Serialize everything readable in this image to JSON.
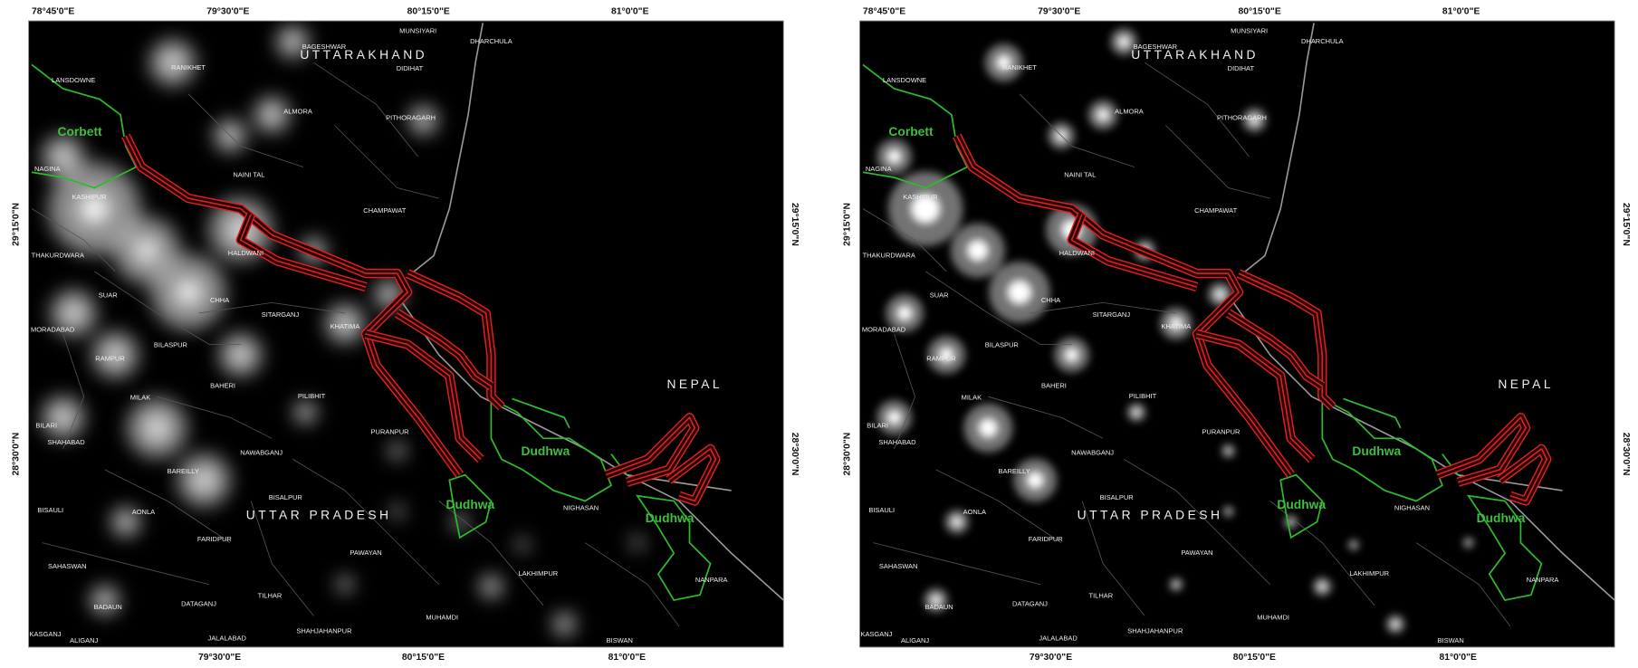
{
  "panels": [
    {
      "coordinates": {
        "top": [
          "78°45'0\"E",
          "79°30'0\"E",
          "80°15'0\"E",
          "81°0'0\"E"
        ],
        "bottom": [
          "79°30'0\"E",
          "80°15'0\"E",
          "81°0'0\"E"
        ],
        "left": [
          "29°15'0\"N",
          "28°30'0\"N"
        ],
        "right": [
          "29°15'0\"N",
          "28°30'0\"N"
        ]
      },
      "regions": [
        "UTTARAKHAND",
        "UTTAR PRADESH",
        "NEPAL"
      ],
      "reserves": [
        "Corbett",
        "Dudhwa",
        "Dudhwa",
        "Dudhwa"
      ],
      "places": [
        "MUNSIYARI",
        "BAGESHWAR",
        "DHARCHULA",
        "RANIKHET",
        "DIDIHAT",
        "LANSDOWNE",
        "ALMORA",
        "PITHORAGARH",
        "NAGINA",
        "NAINI TAL",
        "KASHIPUR",
        "CHAMPAWAT",
        "THAKURDWARA",
        "HALDWANI",
        "SUAR",
        "CHHA",
        "SITARGANJ",
        "KHATIMA",
        "MORADABAD",
        "BILASPUR",
        "RAMPUR",
        "BAHERI",
        "MILAK",
        "PILIBHIT",
        "BILARI",
        "PURANPUR",
        "SHAHABAD",
        "NAWABGANJ",
        "BAREILLY",
        "BISALPUR",
        "NIGHASAN",
        "BISAULI",
        "AONLA",
        "FARIDPUR",
        "PAWAYAN",
        "SAHASWAN",
        "LAKHIMPUR",
        "NANPARA",
        "BADAUN",
        "DATAGANJ",
        "TILHAR",
        "MUHAMDI",
        "SHAHJAHANPUR",
        "KASGANJ",
        "ALIGANJ",
        "JALALABAD",
        "BISWAN"
      ]
    },
    {
      "coordinates": {
        "top": [
          "78°45'0\"E",
          "79°30'0\"E",
          "80°15'0\"E",
          "81°0'0\"E"
        ],
        "bottom": [
          "79°30'0\"E",
          "80°15'0\"E",
          "81°0'0\"E"
        ],
        "left": [
          "29°15'0\"N",
          "28°30'0\"N"
        ],
        "right": [
          "29°15'0\"N",
          "28°30'0\"N"
        ]
      },
      "regions": [
        "UTTARAKHAND",
        "UTTAR PRADESH",
        "NEPAL"
      ],
      "reserves": [
        "Corbett",
        "Dudhwa",
        "Dudhwa",
        "Dudhwa"
      ],
      "places": [
        "MUNSIYARI",
        "BAGESHWAR",
        "DHARCHULA",
        "RANIKHET",
        "DIDIHAT",
        "LANSDOWNE",
        "ALMORA",
        "PITHORAGARH",
        "NAGINA",
        "NAINI TAL",
        "KASHIPUR",
        "CHAMPAWAT",
        "THAKURDWARA",
        "HALDWANI",
        "SUAR",
        "CHHA",
        "SITARGANJ",
        "KHATIMA",
        "MORADABAD",
        "BILASPUR",
        "RAMPUR",
        "BAHERI",
        "MILAK",
        "PILIBHIT",
        "BILARI",
        "PURANPUR",
        "SHAHABAD",
        "NAWABGANJ",
        "BAREILLY",
        "BISALPUR",
        "NIGHASAN",
        "BISAULI",
        "AONLA",
        "FARIDPUR",
        "PAWAYAN",
        "SAHASWAN",
        "LAKHIMPUR",
        "NANPARA",
        "BADAUN",
        "DATAGANJ",
        "TILHAR",
        "MUHAMDI",
        "SHAHJAHANPUR",
        "KASGANJ",
        "ALIGANJ",
        "JALALABAD",
        "BISWAN"
      ]
    }
  ]
}
